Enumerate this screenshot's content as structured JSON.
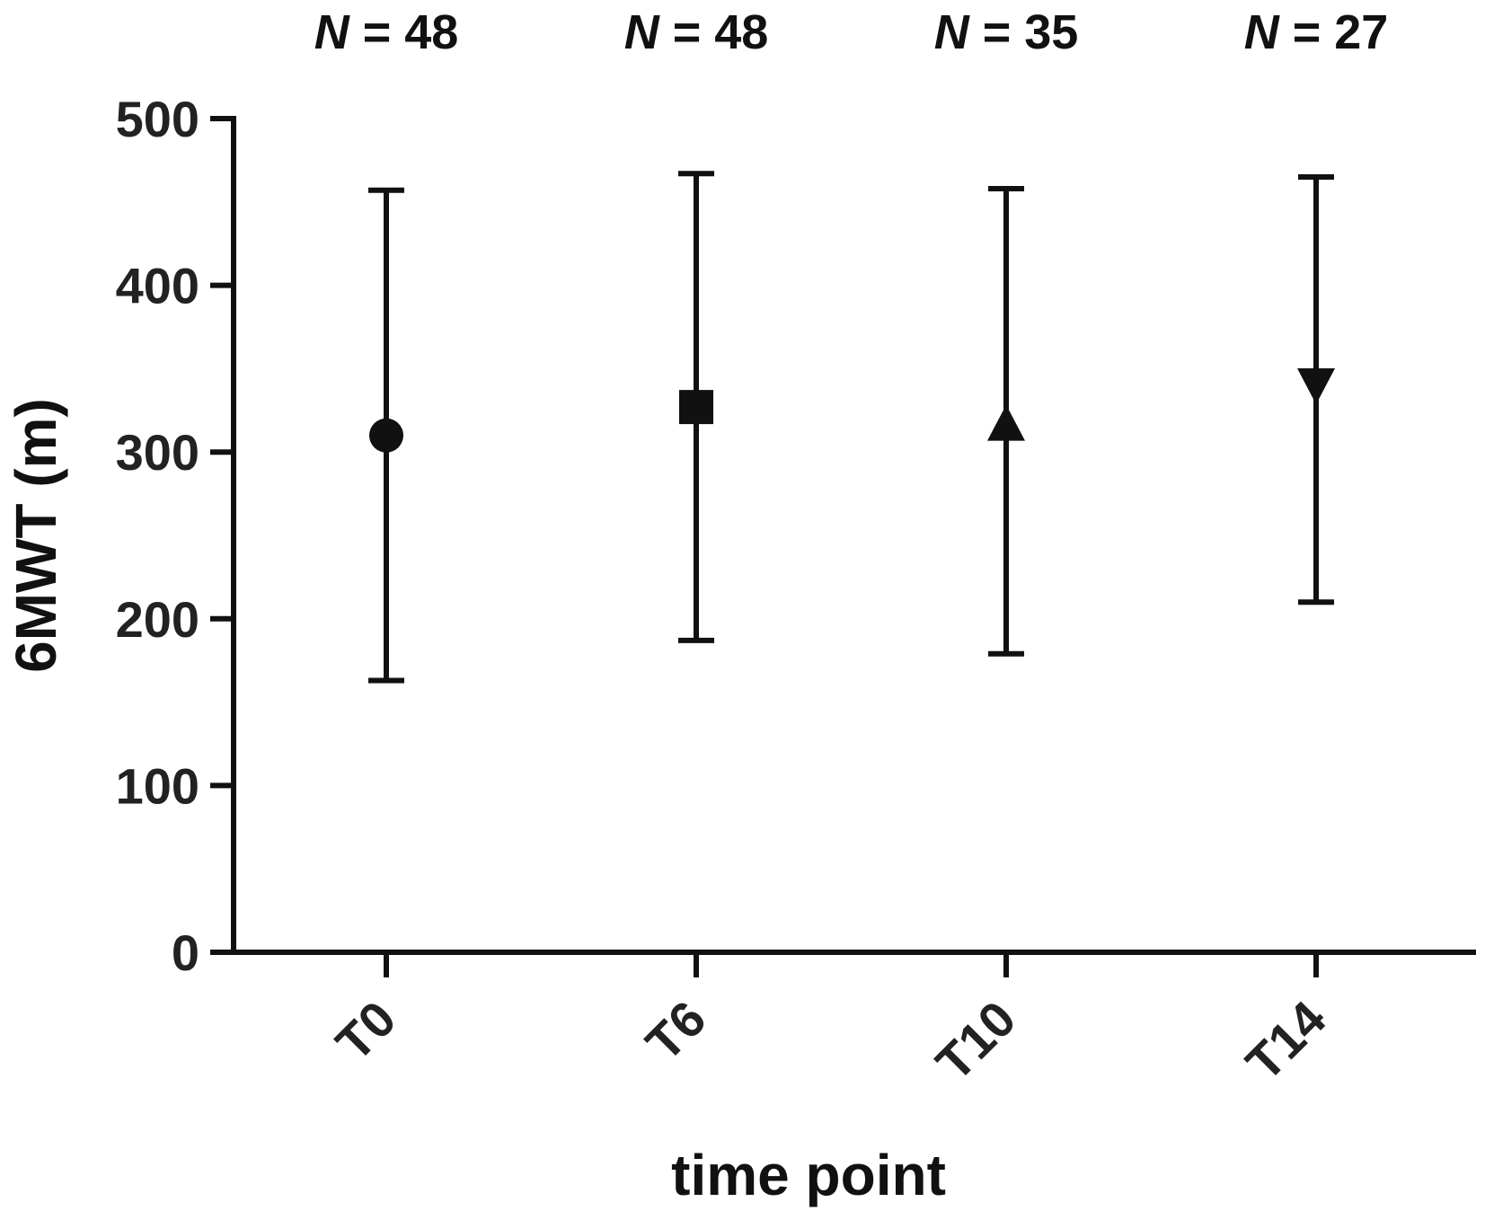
{
  "chart_data": {
    "type": "scatter",
    "title": "",
    "xlabel": "time point",
    "ylabel": "6MWT (m)",
    "ylim": [
      0,
      500
    ],
    "yticks": [
      0,
      100,
      200,
      300,
      400,
      500
    ],
    "categories": [
      "T0",
      "T6",
      "T10",
      "T14"
    ],
    "n_labels": [
      "N = 48",
      "N = 48",
      "N = 35",
      "N = 27"
    ],
    "points": [
      {
        "category": "T0",
        "n": 48,
        "mean": 310,
        "lower": 163,
        "upper": 457,
        "marker": "circle"
      },
      {
        "category": "T6",
        "n": 48,
        "mean": 327,
        "lower": 187,
        "upper": 467,
        "marker": "square"
      },
      {
        "category": "T10",
        "n": 35,
        "mean": 317,
        "lower": 179,
        "upper": 458,
        "marker": "triangle-up"
      },
      {
        "category": "T14",
        "n": 27,
        "mean": 340,
        "lower": 210,
        "upper": 465,
        "marker": "triangle-down"
      }
    ],
    "grid": false,
    "legend": "none",
    "color": "#111111"
  }
}
